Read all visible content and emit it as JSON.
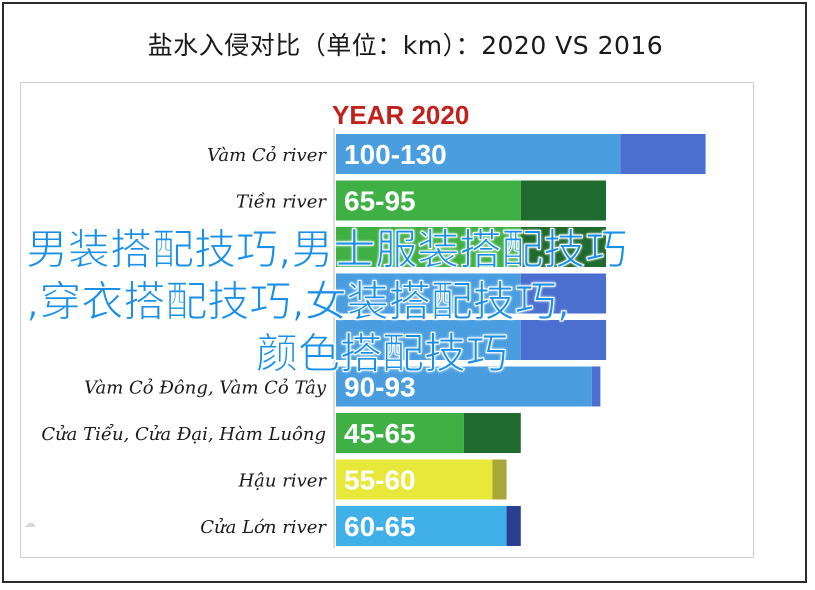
{
  "header": {
    "title": "盐水入侵对比（单位：km）：2020 VS 2016"
  },
  "chart_data": {
    "type": "bar",
    "title": "YEAR 2020",
    "categories": [
      "Vàm Cỏ river",
      "Tiền river",
      "",
      "",
      "",
      "Vàm Cỏ Đông, Vàm Cỏ Tây",
      "Cửa Tiểu, Cửa Đại, Hàm Luông",
      "Hậu river",
      "Cửa Lớn river"
    ],
    "labels": [
      "100-130",
      "65-95",
      "",
      "",
      "",
      "90-93",
      "45-65",
      "55-60",
      "60-65"
    ],
    "series": [
      {
        "name": "2020",
        "values": [
          130,
          95,
          95,
          95,
          95,
          93,
          65,
          60,
          65
        ]
      },
      {
        "name": "2016",
        "values": [
          130,
          95,
          95,
          95,
          95,
          93,
          65,
          60,
          65
        ]
      }
    ],
    "ranges": [
      [
        100,
        130
      ],
      [
        65,
        95
      ],
      [
        65,
        95
      ],
      [
        65,
        95
      ],
      [
        65,
        95
      ],
      [
        90,
        93
      ],
      [
        45,
        65
      ],
      [
        55,
        60
      ],
      [
        60,
        65
      ]
    ],
    "light_colors": [
      "#4a9ee0",
      "#3fb044",
      "#3fb044",
      "#4a9ee0",
      "#4a9ee0",
      "#4a9ee0",
      "#3fb044",
      "#e8e83a",
      "#3fb0e8"
    ],
    "dark_colors": [
      "#4a6fcf",
      "#1f6a2e",
      "#1f6a2e",
      "#4a6fcf",
      "#4a6fcf",
      "#4a6fcf",
      "#1f6a2e",
      "#a8a838",
      "#2a3f8f"
    ],
    "xlim": [
      0,
      140
    ]
  },
  "overlay": {
    "line1": "男装搭配技巧,男士服装搭配技巧",
    "line2": ",穿衣搭配技巧,女装搭配技巧,",
    "line3": "颜色搭配技巧"
  },
  "icons": {
    "watermark": "cloud-icon"
  }
}
